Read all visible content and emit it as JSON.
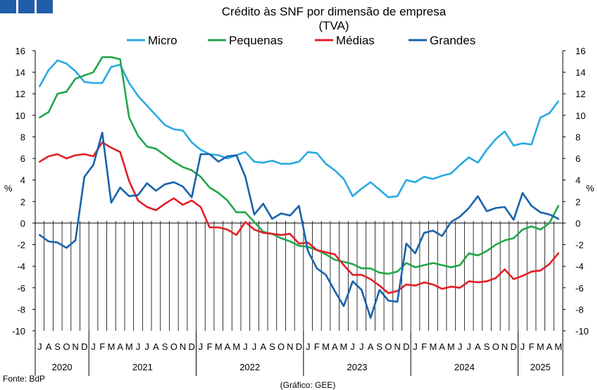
{
  "logo": {
    "color": "#1f5ea8"
  },
  "chart_data": {
    "type": "line",
    "title": "Crédito às SNF por dimensão de empresa",
    "subtitle": "(TVA)",
    "ylabel_left": "%",
    "ylabel_right": "%",
    "ylim": [
      -10,
      16
    ],
    "yticks": [
      -10,
      -8,
      -6,
      -4,
      -2,
      0,
      2,
      4,
      6,
      8,
      10,
      12,
      14,
      16
    ],
    "grid": false,
    "legend_position": "top",
    "month_labels": [
      "J",
      "A",
      "S",
      "O",
      "N",
      "D",
      "J",
      "F",
      "M",
      "A",
      "M",
      "J",
      "J",
      "A",
      "S",
      "O",
      "N",
      "D",
      "J",
      "F",
      "M",
      "A",
      "M",
      "J",
      "J",
      "A",
      "S",
      "O",
      "N",
      "D",
      "J",
      "F",
      "M",
      "A",
      "M",
      "J",
      "J",
      "A",
      "S",
      "O",
      "N",
      "D",
      "J",
      "F",
      "M",
      "A",
      "M",
      "J",
      "J",
      "A",
      "S",
      "O",
      "N",
      "D",
      "J",
      "F",
      "M",
      "A",
      "M"
    ],
    "years": [
      {
        "label": "2020",
        "start": 0,
        "end": 6
      },
      {
        "label": "2021",
        "start": 6,
        "end": 18
      },
      {
        "label": "2022",
        "start": 18,
        "end": 30
      },
      {
        "label": "2023",
        "start": 30,
        "end": 42
      },
      {
        "label": "2024",
        "start": 42,
        "end": 54
      },
      {
        "label": "2025",
        "start": 54,
        "end": 59
      }
    ],
    "series": [
      {
        "name": "Micro",
        "color": "#29aae1",
        "values": [
          12.7,
          14.2,
          15.1,
          14.8,
          14.1,
          13.1,
          13.0,
          13.0,
          14.5,
          14.7,
          13.0,
          11.8,
          10.9,
          10.0,
          9.1,
          8.7,
          8.6,
          7.5,
          6.8,
          6.4,
          6.3,
          6.0,
          6.3,
          6.6,
          5.7,
          5.6,
          5.8,
          5.5,
          5.5,
          5.7,
          6.6,
          6.5,
          5.5,
          4.9,
          4.1,
          2.5,
          3.2,
          3.8,
          3.1,
          2.4,
          2.5,
          4.0,
          3.8,
          4.3,
          4.1,
          4.4,
          4.6,
          5.4,
          6.1,
          5.6,
          6.8,
          7.8,
          8.5,
          7.2,
          7.4,
          7.3,
          9.8,
          10.2,
          11.3
        ]
      },
      {
        "name": "Pequenas",
        "color": "#22a64a",
        "values": [
          9.8,
          10.3,
          12.0,
          12.2,
          13.4,
          13.7,
          14.0,
          15.4,
          15.4,
          15.2,
          9.8,
          8.1,
          7.1,
          6.9,
          6.3,
          5.7,
          5.2,
          4.9,
          4.3,
          3.3,
          2.8,
          2.1,
          1.0,
          1.0,
          0.1,
          -0.8,
          -1.0,
          -1.4,
          -1.7,
          -2.1,
          -2.2,
          -2.5,
          -2.9,
          -3.4,
          -3.6,
          -3.8,
          -4.2,
          -4.2,
          -4.6,
          -4.7,
          -4.5,
          -3.7,
          -4.1,
          -3.9,
          -3.7,
          -3.9,
          -4.1,
          -3.9,
          -2.8,
          -3.0,
          -2.6,
          -2.0,
          -1.6,
          -1.4,
          -0.6,
          -0.3,
          -0.6,
          0.0,
          1.6
        ]
      },
      {
        "name": "Médias",
        "color": "#e31e24",
        "values": [
          5.7,
          6.2,
          6.4,
          6.0,
          6.3,
          6.4,
          6.2,
          7.5,
          7.0,
          6.6,
          3.9,
          2.1,
          1.5,
          1.2,
          1.8,
          2.3,
          1.7,
          2.1,
          1.5,
          -0.4,
          -0.4,
          -0.6,
          -1.1,
          0.1,
          -0.6,
          -0.9,
          -1.0,
          -1.1,
          -1.0,
          -1.9,
          -1.8,
          -2.5,
          -2.7,
          -2.9,
          -3.9,
          -4.8,
          -4.8,
          -5.2,
          -5.8,
          -6.5,
          -6.3,
          -5.7,
          -5.8,
          -5.5,
          -5.7,
          -6.1,
          -5.9,
          -6.0,
          -5.4,
          -5.5,
          -5.4,
          -5.1,
          -4.3,
          -5.2,
          -4.9,
          -4.5,
          -4.4,
          -3.8,
          -2.8
        ]
      },
      {
        "name": "Grandes",
        "color": "#1862ac",
        "values": [
          -1.1,
          -1.7,
          -1.8,
          -2.3,
          -1.6,
          4.3,
          5.4,
          8.4,
          1.9,
          3.3,
          2.5,
          2.6,
          3.7,
          3.0,
          3.6,
          3.8,
          3.4,
          2.4,
          6.4,
          6.4,
          5.7,
          6.2,
          6.3,
          4.3,
          0.8,
          1.8,
          0.4,
          0.9,
          0.7,
          1.6,
          -2.6,
          -4.2,
          -4.8,
          -6.3,
          -7.7,
          -5.4,
          -6.2,
          -8.8,
          -6.2,
          -7.2,
          -7.3,
          -1.9,
          -2.8,
          -0.9,
          -0.7,
          -1.2,
          0.1,
          0.6,
          1.4,
          2.5,
          1.1,
          1.4,
          1.5,
          0.3,
          2.8,
          1.6,
          1.0,
          0.8,
          0.4
        ]
      }
    ]
  },
  "footer": {
    "source": "Fonte: BdP",
    "credit": "(Gráfico: GEE)"
  }
}
